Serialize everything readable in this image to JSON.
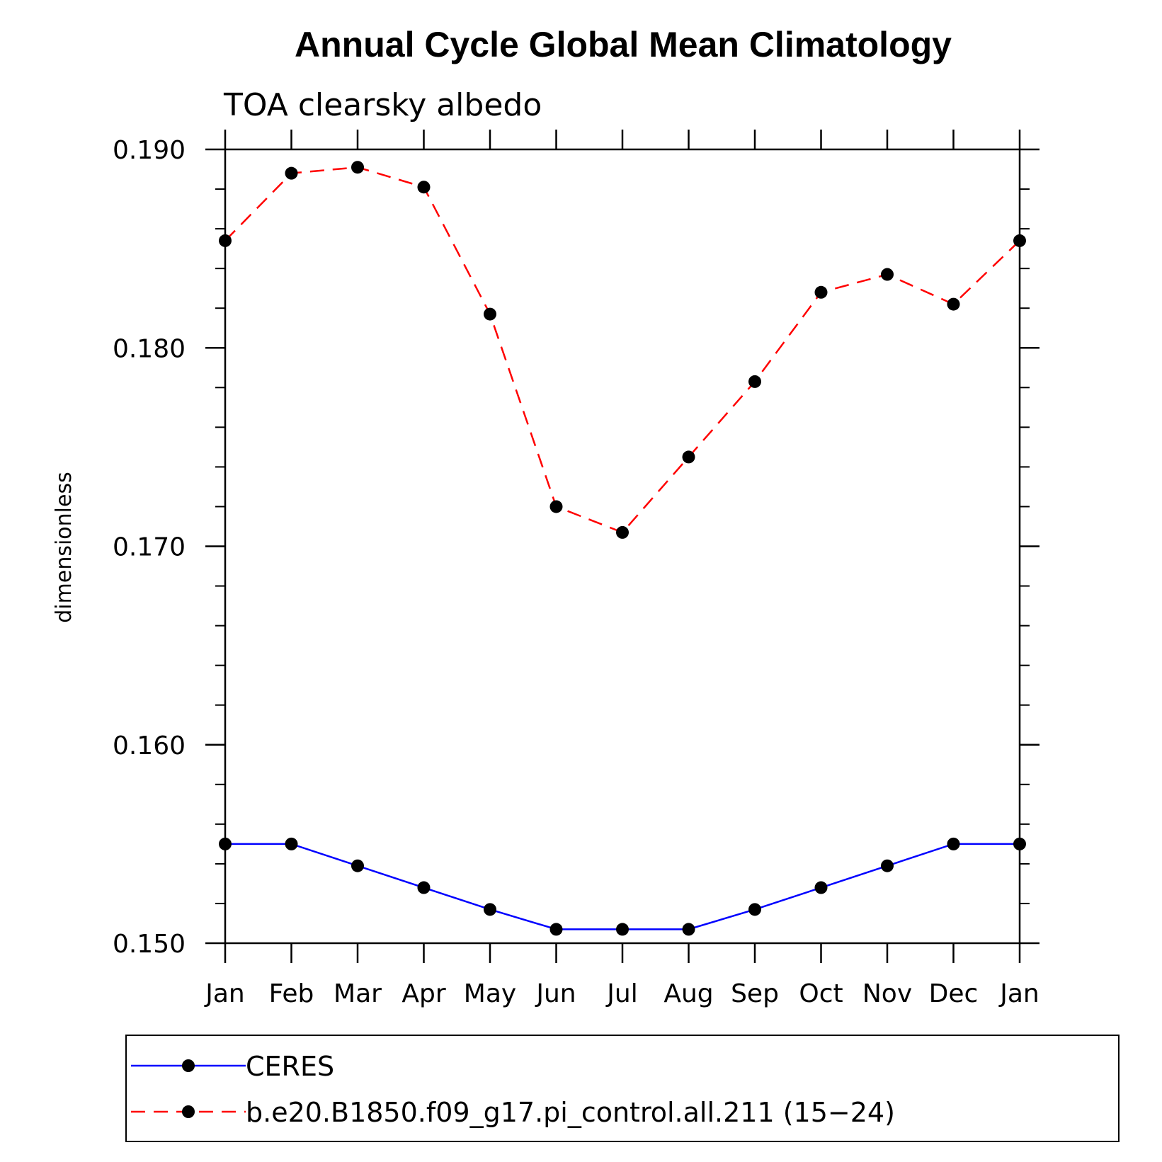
{
  "chart_data": {
    "type": "line",
    "title": "Annual Cycle Global Mean Climatology",
    "subtitle": "TOA clearsky albedo",
    "xlabel": "",
    "ylabel": "dimensionless",
    "categories": [
      "Jan",
      "Feb",
      "Mar",
      "Apr",
      "May",
      "Jun",
      "Jul",
      "Aug",
      "Sep",
      "Oct",
      "Nov",
      "Dec",
      "Jan"
    ],
    "ylim": [
      0.15,
      0.19
    ],
    "yticks": [
      "0.150",
      "0.160",
      "0.170",
      "0.180",
      "0.190"
    ],
    "ytick_values": [
      0.15,
      0.16,
      0.17,
      0.18,
      0.19
    ],
    "series": [
      {
        "name": "CERES",
        "color": "#0000ff",
        "line_style": "solid",
        "marker": "filled-circle",
        "values": [
          0.155,
          0.155,
          0.1539,
          0.1528,
          0.1517,
          0.1507,
          0.1507,
          0.1507,
          0.1517,
          0.1528,
          0.1539,
          0.155,
          0.155
        ]
      },
      {
        "name": "b.e20.B1850.f09_g17.pi_control.all.211 (15−24)",
        "color": "#ff0000",
        "line_style": "dashed",
        "marker": "filled-circle",
        "values": [
          0.1854,
          0.1888,
          0.1891,
          0.1881,
          0.1817,
          0.172,
          0.1707,
          0.1745,
          0.1783,
          0.1828,
          0.1837,
          0.1822,
          0.1854
        ]
      }
    ],
    "grid": false,
    "legend_position": "bottom"
  }
}
